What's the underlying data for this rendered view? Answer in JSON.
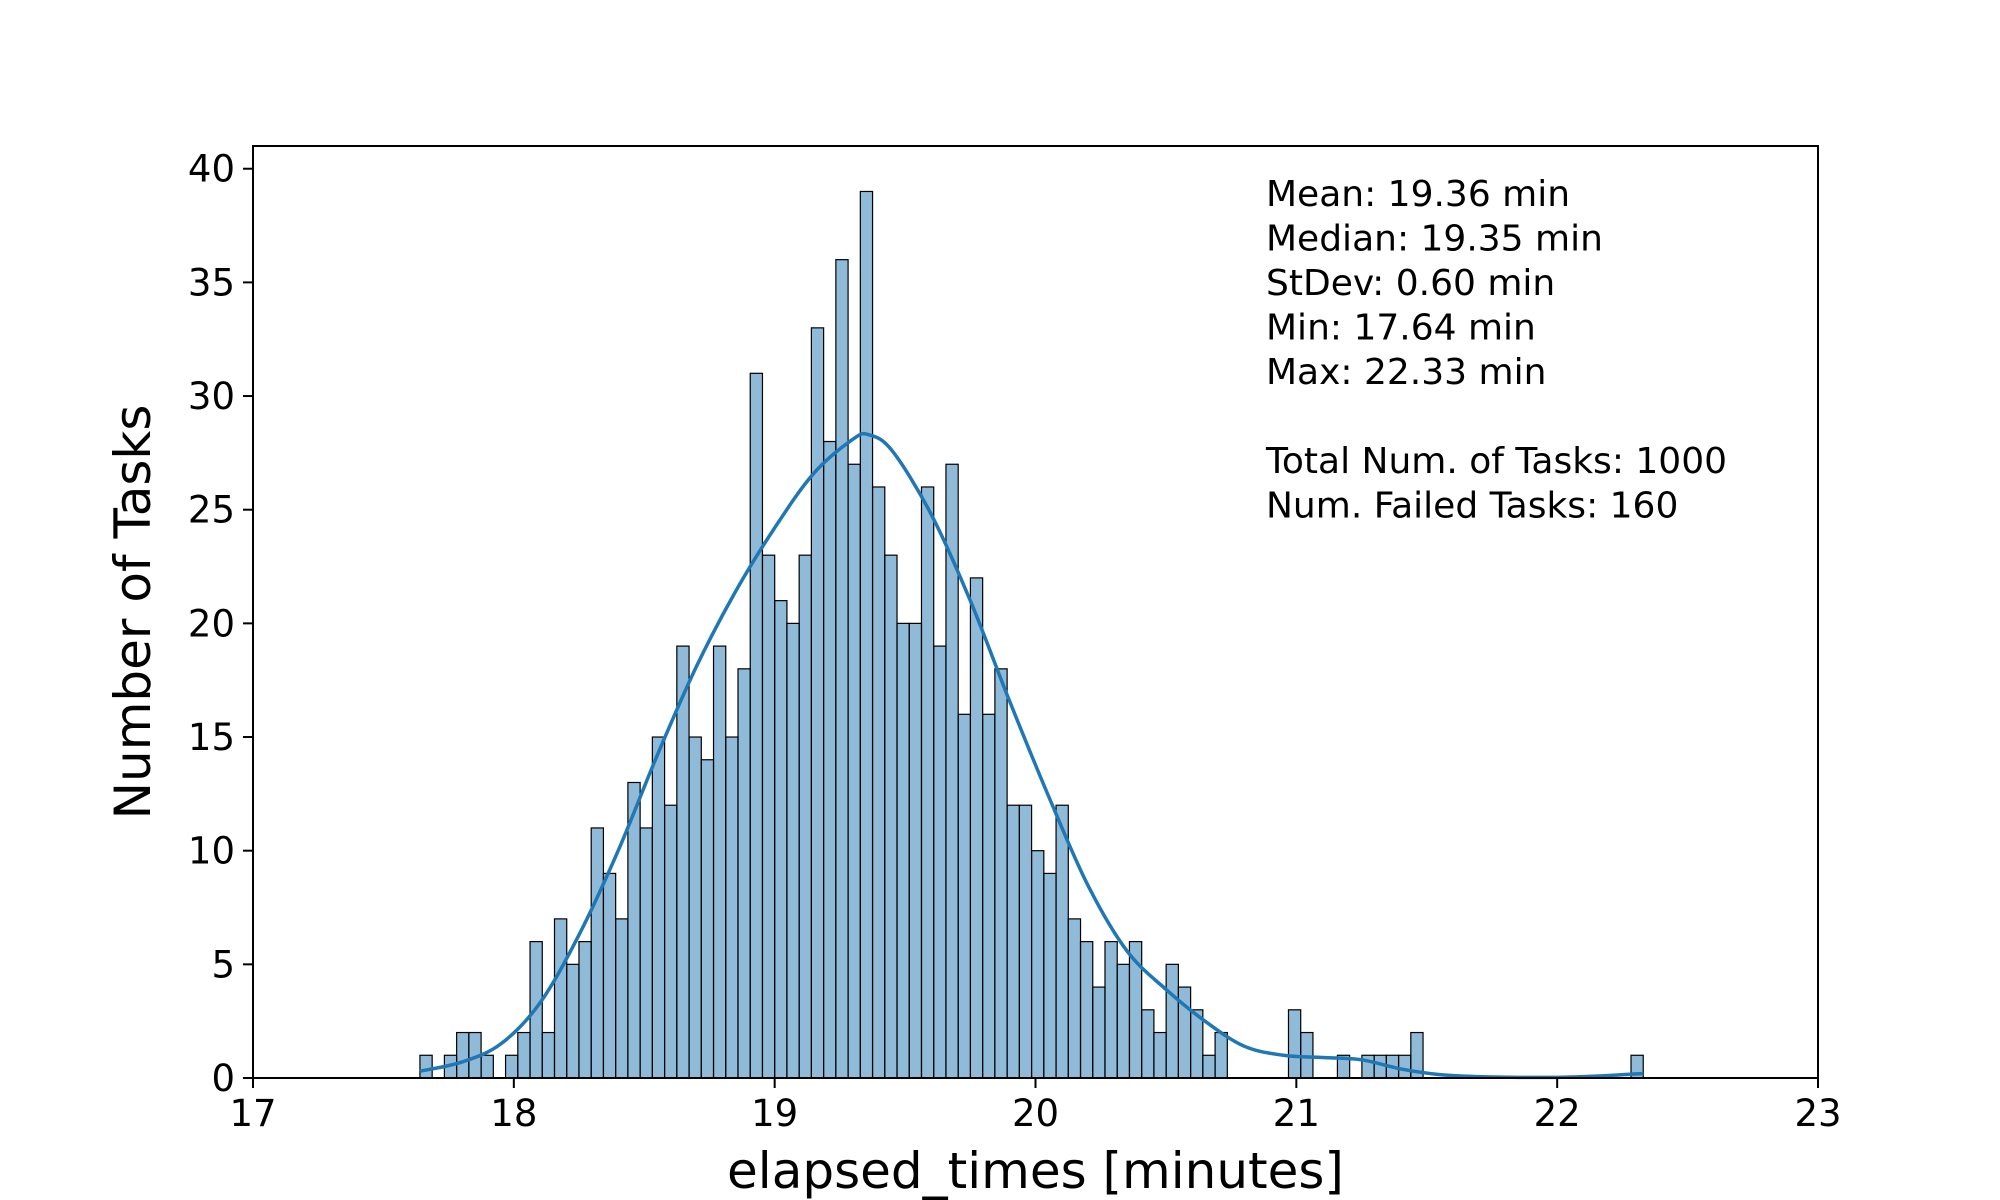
{
  "chart_data": {
    "type": "bar",
    "subtype": "histogram_with_kde",
    "title": "",
    "xlabel": "elapsed_times [minutes]",
    "ylabel": "Number of Tasks",
    "xlim": [
      17,
      23
    ],
    "ylim": [
      0,
      41
    ],
    "xticks": [
      17,
      18,
      19,
      20,
      21,
      22,
      23
    ],
    "yticks": [
      0,
      5,
      10,
      15,
      20,
      25,
      30,
      35,
      40
    ],
    "grid": false,
    "bar_color": "#1f77b4",
    "bar_opacity": 0.5,
    "kde_color": "#1f77b4",
    "bins": {
      "start": 17.64,
      "width": 0.0469,
      "counts": [
        1,
        0,
        1,
        2,
        2,
        1,
        0,
        1,
        2,
        6,
        2,
        7,
        5,
        6,
        11,
        9,
        7,
        13,
        11,
        15,
        12,
        19,
        15,
        14,
        19,
        15,
        18,
        31,
        23,
        21,
        20,
        23,
        33,
        28,
        36,
        27,
        39,
        26,
        23,
        20,
        20,
        26,
        19,
        27,
        16,
        22,
        16,
        18,
        12,
        12,
        10,
        9,
        12,
        7,
        6,
        4,
        6,
        5,
        6,
        3,
        2,
        5,
        4,
        3,
        1,
        2,
        0,
        0,
        0,
        0,
        0,
        3,
        2,
        0,
        0,
        1,
        0,
        1,
        1,
        1,
        1,
        2,
        0,
        0,
        0,
        0,
        0,
        0,
        0,
        0,
        0,
        0,
        0,
        0,
        0,
        0,
        0,
        0,
        0,
        1
      ]
    },
    "kde": {
      "x": [
        17.64,
        17.8,
        17.95,
        18.1,
        18.25,
        18.4,
        18.55,
        18.7,
        18.85,
        19.0,
        19.15,
        19.3,
        19.36,
        19.45,
        19.6,
        19.75,
        19.9,
        20.05,
        20.2,
        20.35,
        20.5,
        20.65,
        20.8,
        20.95,
        21.1,
        21.25,
        21.4,
        21.55,
        21.7,
        21.85,
        22.0,
        22.15,
        22.33
      ],
      "y": [
        0.3,
        0.7,
        1.5,
        3.3,
        6.3,
        10.0,
        14.2,
        18.1,
        21.4,
        24.2,
        26.6,
        28.1,
        28.3,
        27.6,
        24.8,
        21.0,
        16.6,
        12.4,
        8.5,
        5.6,
        3.9,
        2.5,
        1.4,
        1.0,
        0.9,
        0.8,
        0.4,
        0.15,
        0.06,
        0.03,
        0.03,
        0.08,
        0.2
      ]
    },
    "annotations": [
      "Mean: 19.36 min",
      "Median: 19.35 min",
      "StDev: 0.60 min",
      "Min: 17.64 min",
      "Max: 22.33 min",
      "",
      "Total Num. of Tasks: 1000",
      "Num. Failed Tasks: 160"
    ]
  }
}
